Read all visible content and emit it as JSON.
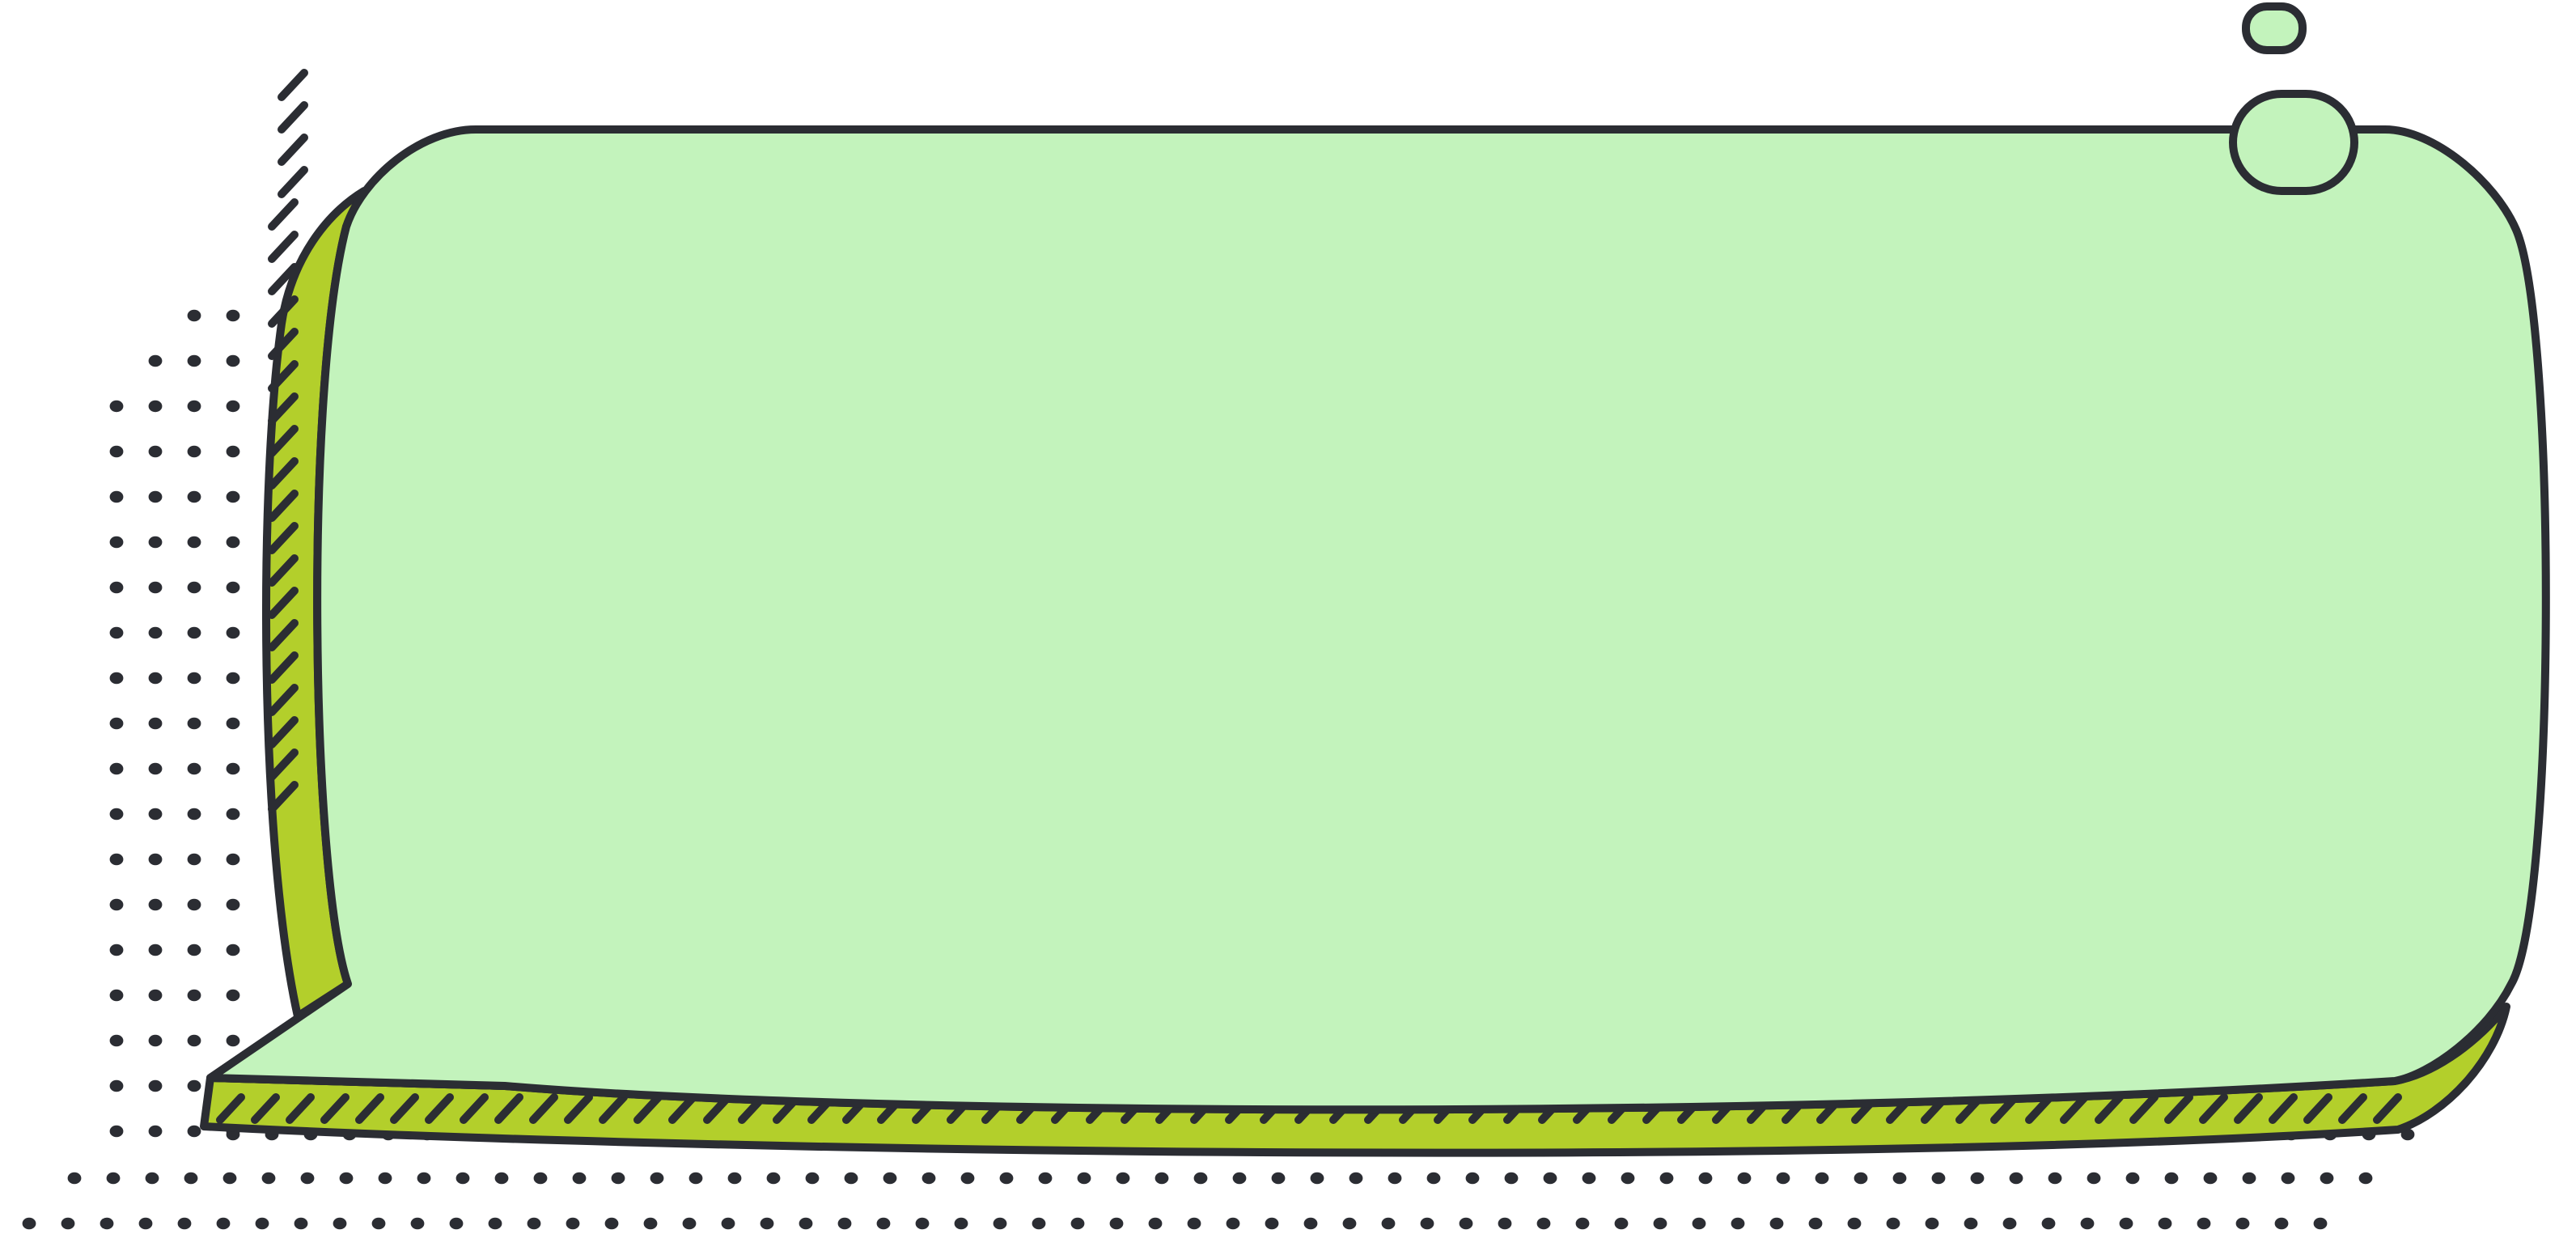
{
  "graphic": {
    "type": "decorative-frame-banner",
    "icons": [
      "dot-pattern",
      "hatch-stripes",
      "rounded-frame",
      "pill-tab"
    ]
  },
  "colors": {
    "background": "#ffffff",
    "panel_fill": "#c3f3bc",
    "accent_fill": "#b3cf2b",
    "outline": "#2b2d33",
    "dots": "#2b2d33"
  }
}
